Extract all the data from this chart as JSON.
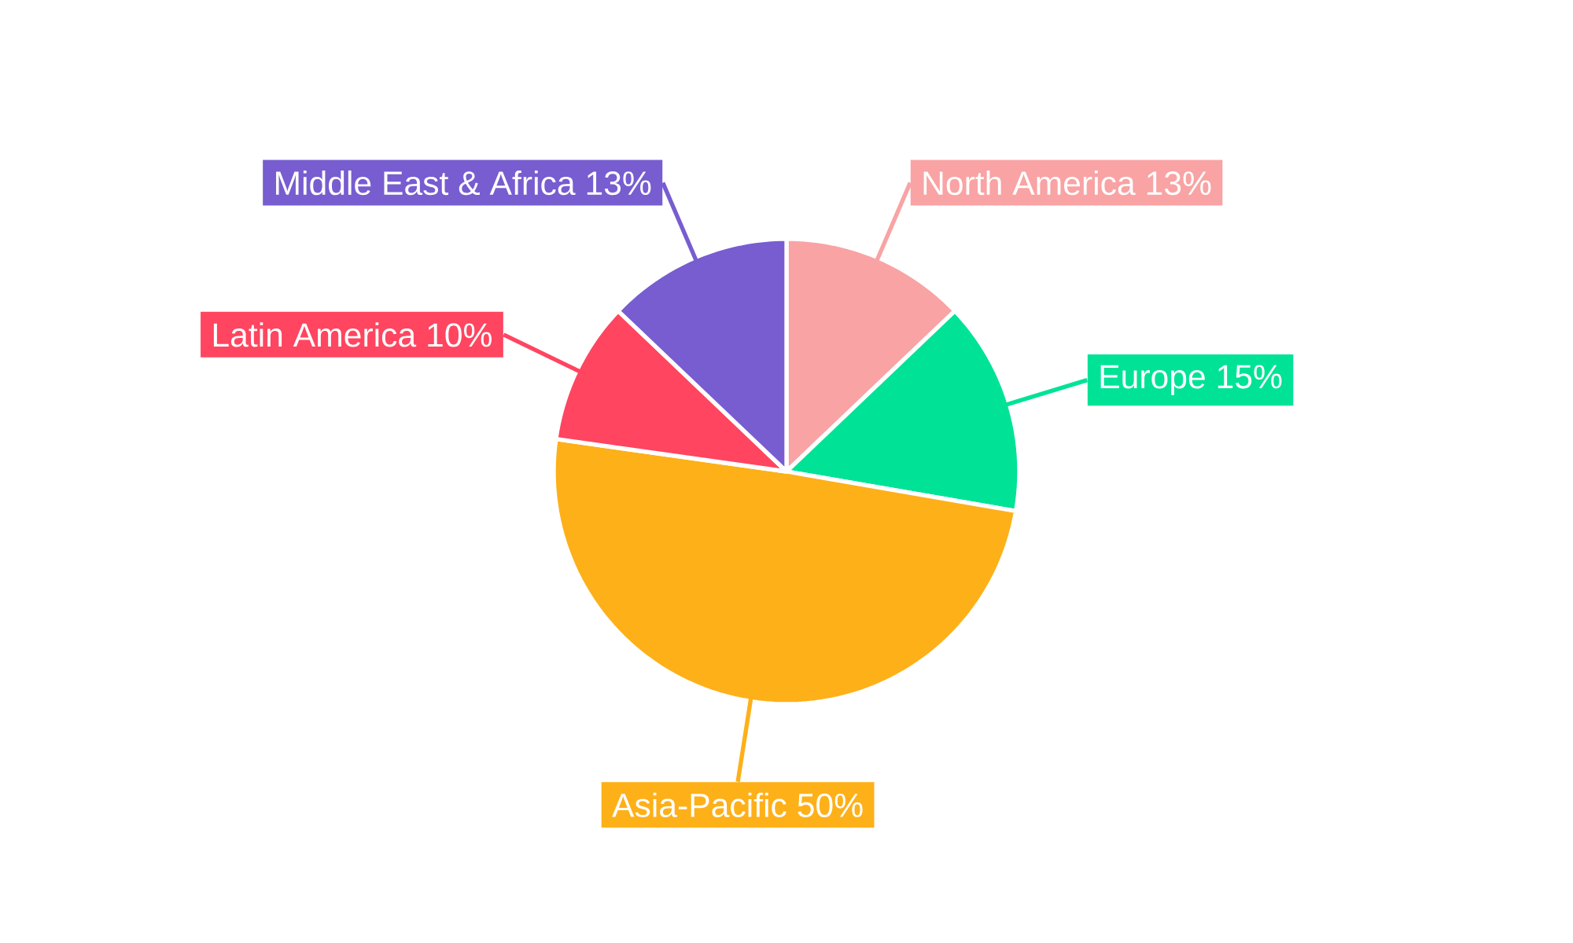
{
  "chart_data": {
    "type": "pie",
    "categories": [
      "North America",
      "Europe",
      "Asia-Pacific",
      "Latin America",
      "Middle East & Africa"
    ],
    "values": [
      13,
      15,
      50,
      10,
      13
    ],
    "value_labels": [
      "13%",
      "15%",
      "50%",
      "10%",
      "13%"
    ],
    "colors": [
      "#f9a3a4",
      "#00e396",
      "#feb019",
      "#ff4560",
      "#775dd0"
    ]
  }
}
